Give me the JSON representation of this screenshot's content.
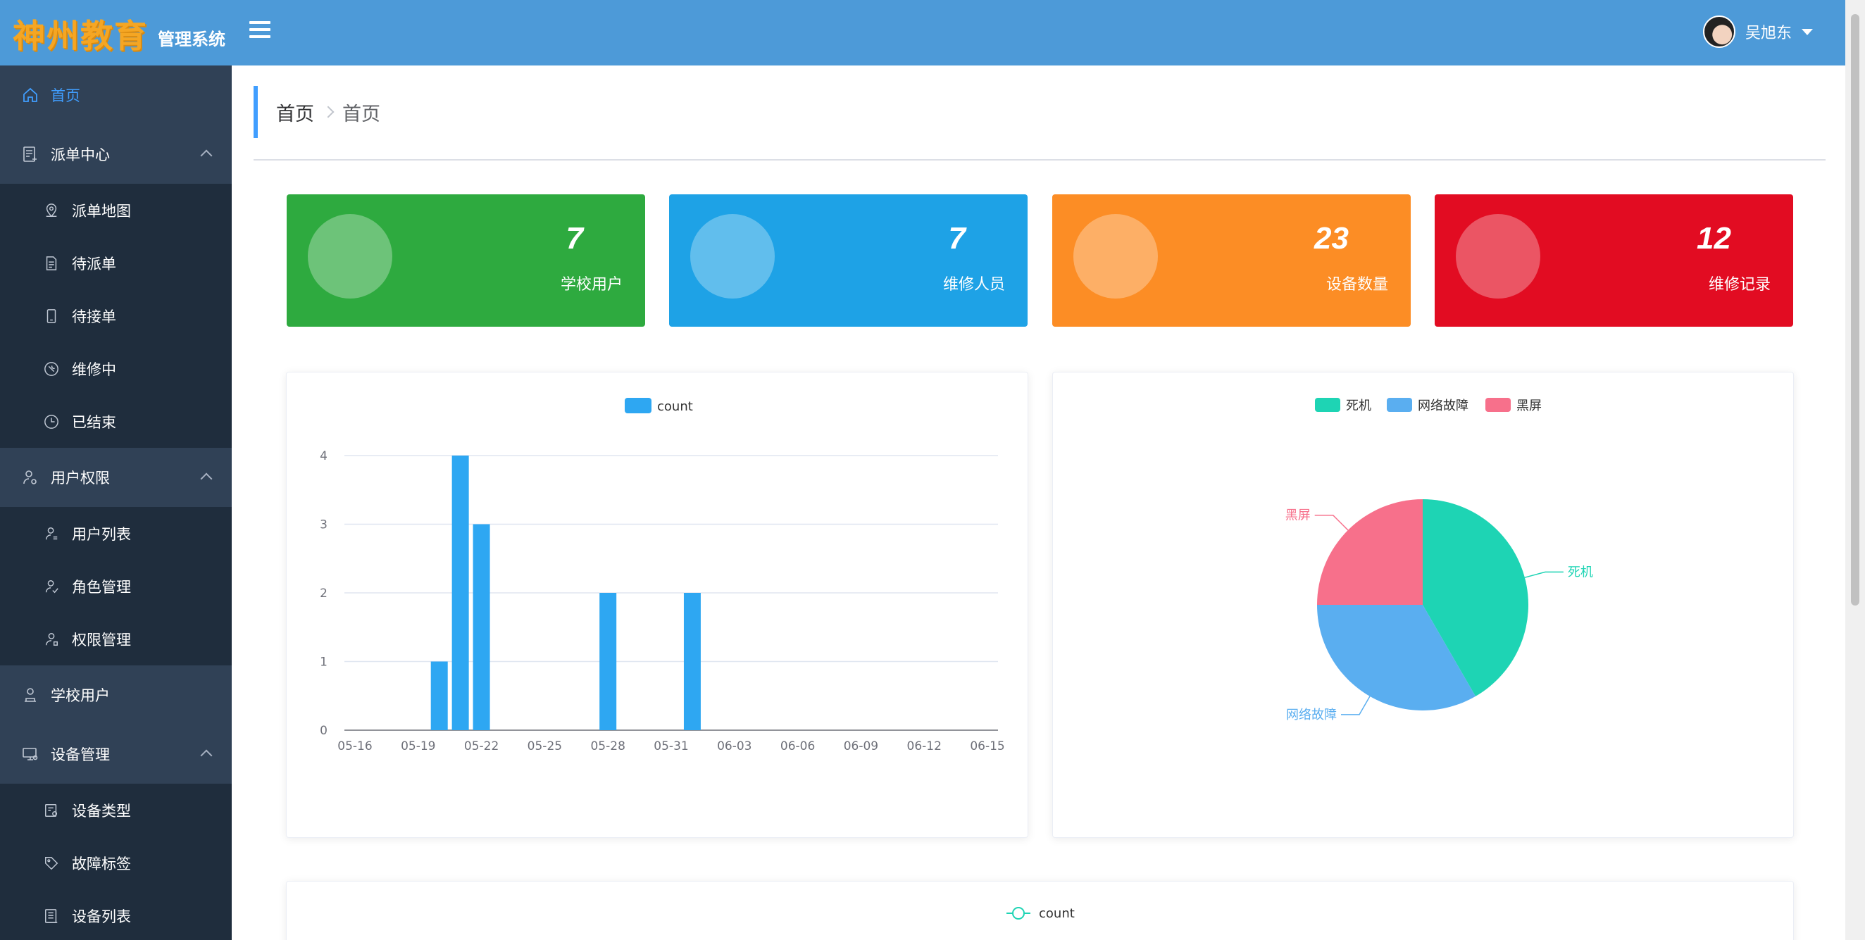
{
  "header": {
    "logo_text": "神州教育",
    "logo_subtitle": "管理系统",
    "user_name": "吴旭东"
  },
  "sidebar": {
    "items": [
      {
        "label": "首页",
        "icon": "home-icon"
      },
      {
        "label": "派单中心",
        "icon": "dispatch-icon",
        "children": [
          {
            "label": "派单地图",
            "icon": "map-pin-icon"
          },
          {
            "label": "待派单",
            "icon": "document-icon"
          },
          {
            "label": "待接单",
            "icon": "mobile-icon"
          },
          {
            "label": "维修中",
            "icon": "wrench-icon"
          },
          {
            "label": "已结束",
            "icon": "clock-icon"
          }
        ]
      },
      {
        "label": "用户权限",
        "icon": "user-settings-icon",
        "children": [
          {
            "label": "用户列表",
            "icon": "user-list-icon"
          },
          {
            "label": "角色管理",
            "icon": "user-check-icon"
          },
          {
            "label": "权限管理",
            "icon": "user-key-icon"
          }
        ]
      },
      {
        "label": "学校用户",
        "icon": "school-user-icon"
      },
      {
        "label": "设备管理",
        "icon": "monitor-icon",
        "children": [
          {
            "label": "设备类型",
            "icon": "device-type-icon"
          },
          {
            "label": "故障标签",
            "icon": "tag-icon"
          },
          {
            "label": "设备列表",
            "icon": "list-icon"
          }
        ]
      }
    ]
  },
  "breadcrumb": [
    "首页",
    "首页"
  ],
  "stats": [
    {
      "value": "7",
      "label": "学校用户",
      "color": "#2eaa3f"
    },
    {
      "value": "7",
      "label": "维修人员",
      "color": "#1ea2e6"
    },
    {
      "value": "23",
      "label": "设备数量",
      "color": "#fc8d25"
    },
    {
      "value": "12",
      "label": "维修记录",
      "color": "#e20c22"
    }
  ],
  "chart_data": [
    {
      "type": "bar",
      "legend": [
        "count"
      ],
      "categories": [
        "05-16",
        "05-17",
        "05-18",
        "05-19",
        "05-20",
        "05-21",
        "05-22",
        "05-23",
        "05-24",
        "05-25",
        "05-26",
        "05-27",
        "05-28",
        "05-29",
        "05-30",
        "05-31",
        "06-01",
        "06-02",
        "06-03",
        "06-04",
        "06-05",
        "06-06",
        "06-07",
        "06-08",
        "06-09",
        "06-10",
        "06-11",
        "06-12",
        "06-13",
        "06-14",
        "06-15"
      ],
      "tick_labels": [
        "05-16",
        "05-19",
        "05-22",
        "05-25",
        "05-28",
        "05-31",
        "06-03",
        "06-06",
        "06-09",
        "06-12",
        "06-15"
      ],
      "series": [
        {
          "name": "count",
          "values": [
            0,
            0,
            0,
            0,
            1,
            4,
            3,
            0,
            0,
            0,
            0,
            0,
            2,
            0,
            0,
            0,
            2,
            0,
            0,
            0,
            0,
            0,
            0,
            0,
            0,
            0,
            0,
            0,
            0,
            0,
            0
          ]
        }
      ],
      "ylim": [
        0,
        4
      ],
      "yticks": [
        0,
        1,
        2,
        3,
        4
      ],
      "grid": true,
      "color": "#2ea7f2"
    },
    {
      "type": "pie",
      "legend": [
        "死机",
        "网络故障",
        "黑屏"
      ],
      "slices": [
        {
          "label": "死机",
          "value": 5,
          "color": "#1ed4b4"
        },
        {
          "label": "网络故障",
          "value": 4,
          "color": "#5aaef0"
        },
        {
          "label": "黑屏",
          "value": 3,
          "color": "#f7708b"
        }
      ]
    },
    {
      "type": "line",
      "legend": [
        "count"
      ],
      "color": "#1ed4b4"
    }
  ]
}
